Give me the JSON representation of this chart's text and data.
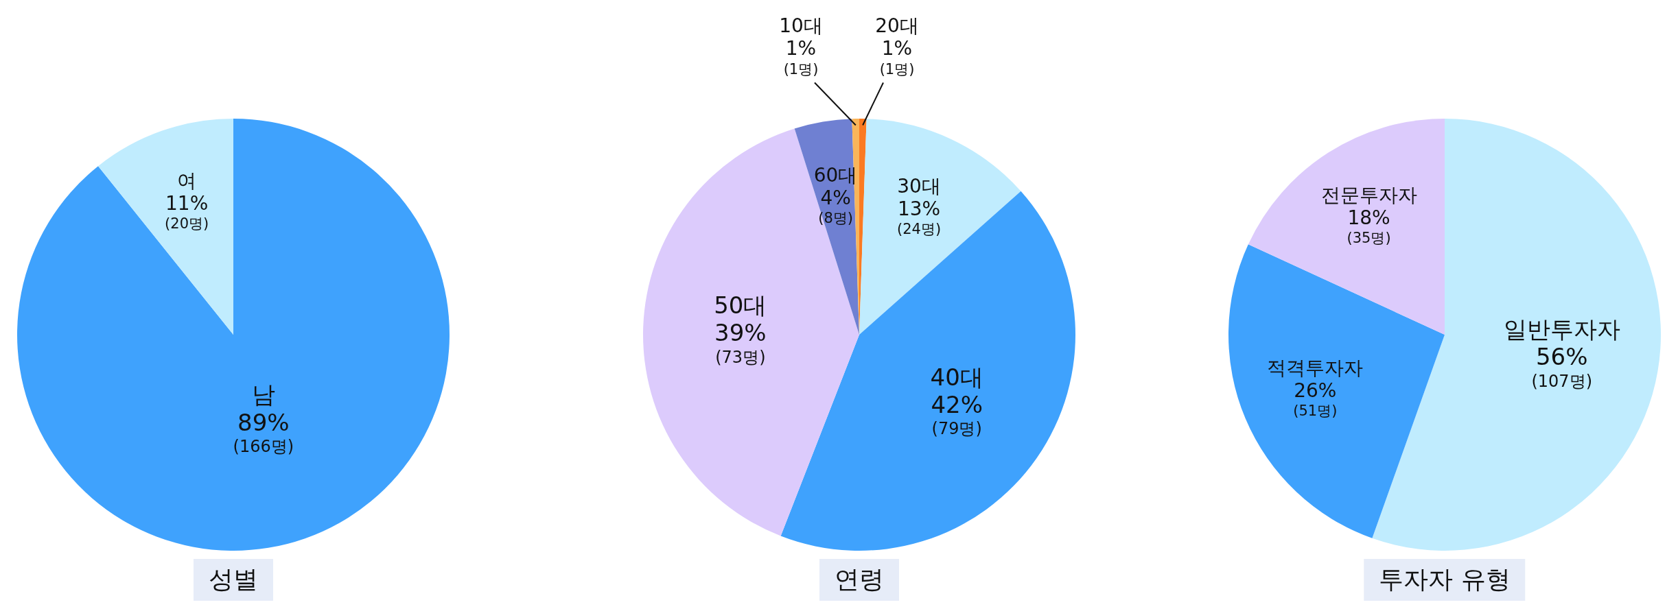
{
  "chart_data": [
    {
      "type": "pie",
      "title": "성별",
      "categories": [
        "남",
        "여"
      ],
      "values": [
        166,
        20
      ],
      "colors": [
        "#3fa2fd",
        "#c0ecfe"
      ],
      "value_labels": [
        "89%\n(166명)",
        "11%\n(20명)"
      ]
    },
    {
      "type": "pie",
      "title": "연령",
      "categories": [
        "20대",
        "30대",
        "40대",
        "50대",
        "60대",
        "10대"
      ],
      "values": [
        1,
        24,
        79,
        73,
        8,
        1
      ],
      "colors": [
        "#fb7a22",
        "#c0ecfe",
        "#3fa2fd",
        "#dccbfc",
        "#6f80d2",
        "#f9b55a"
      ],
      "value_labels": [
        "1%\n(1명)",
        "13%\n(24명)",
        "42%\n(79명)",
        "39%\n(73명)",
        "4%\n(8명)",
        "1%\n(1명)"
      ]
    },
    {
      "type": "pie",
      "title": "투자자 유형",
      "categories": [
        "일반투자자",
        "적격투자자",
        "전문투자자"
      ],
      "values": [
        107,
        51,
        35
      ],
      "colors": [
        "#c0ecfe",
        "#3fa2fd",
        "#dccbfc"
      ],
      "value_labels": [
        "56%\n(107명)",
        "26%\n(51명)",
        "18%\n(35명)"
      ]
    }
  ]
}
